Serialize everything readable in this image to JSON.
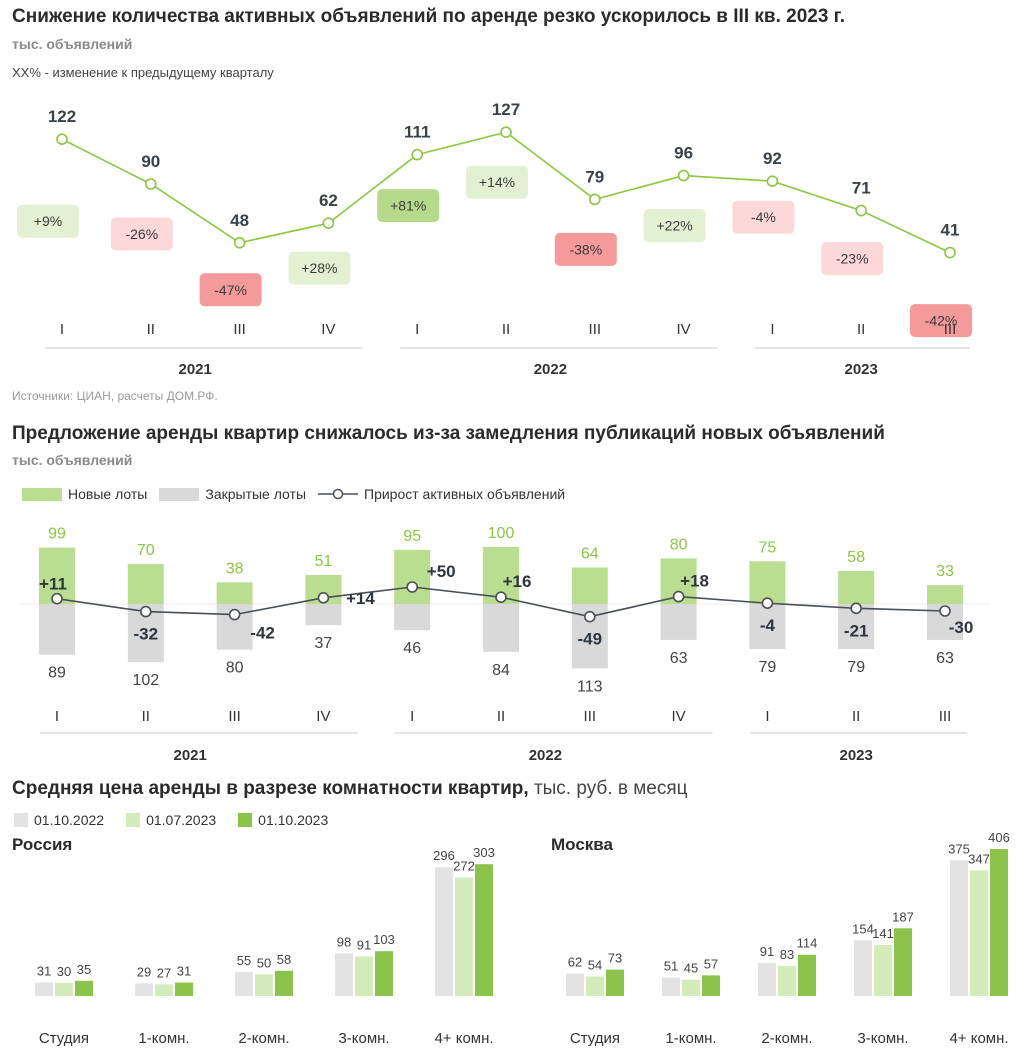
{
  "colors": {
    "line": "#8dc63f",
    "green_bar": "#b9de8f",
    "gray_bar": "#d9d9d9",
    "dark_line": "#4a5058",
    "pos_badge_strong": "#b5db8a",
    "pos_badge_light": "#e3f1d3",
    "neg_badge_strong": "#f59a9a",
    "neg_badge_light": "#fcd8d8",
    "price_old": "#e3e3e3",
    "price_mid": "#d4ebbc",
    "price_new": "#8cc34a"
  },
  "chart1": {
    "title": "Снижение количества активных объявлений по аренде резко ускорилось в III кв. 2023 г.",
    "subtitle": "тыс. объявлений",
    "note": "XX% - изменение к предыдущему кварталу",
    "source": "Источники: ЦИАН, расчеты ДОМ.РФ."
  },
  "chart2": {
    "title": "Предложение аренды квартир снижалось из-за замедления публикаций новых объявлений",
    "subtitle": "тыс. объявлений",
    "legend": {
      "new_lots": "Новые лоты",
      "closed_lots": "Закрытые лоты",
      "growth": "Прирост активных объявлений"
    }
  },
  "chart3": {
    "title": "Средняя цена аренды в разрезе комнатности квартир,",
    "unit": "тыс. руб. в месяц",
    "legend": [
      "01.10.2022",
      "01.07.2023",
      "01.10.2023"
    ],
    "regions": [
      "Россия",
      "Москва"
    ]
  },
  "chart_data": [
    {
      "type": "line",
      "title": "Снижение количества активных объявлений по аренде резко ускорилось в III кв. 2023 г.",
      "ylabel": "тыс. объявлений",
      "categories": [
        "I",
        "II",
        "III",
        "IV",
        "I",
        "II",
        "III",
        "IV",
        "I",
        "II",
        "III"
      ],
      "groups": [
        {
          "label": "2021",
          "count": 4
        },
        {
          "label": "2022",
          "count": 4
        },
        {
          "label": "2023",
          "count": 3
        }
      ],
      "values": [
        122,
        90,
        48,
        62,
        111,
        127,
        79,
        96,
        92,
        71,
        41
      ],
      "changes": [
        "+9%",
        "-26%",
        "-47%",
        "+28%",
        "+81%",
        "+14%",
        "-38%",
        "+22%",
        "-4%",
        "-23%",
        "-42%"
      ],
      "ylim": [
        30,
        135
      ]
    },
    {
      "type": "bar",
      "title": "Предложение аренды квартир снижалось из-за замедления публикаций новых объявлений",
      "ylabel": "тыс. объявлений",
      "categories": [
        "I",
        "II",
        "III",
        "IV",
        "I",
        "II",
        "III",
        "IV",
        "I",
        "II",
        "III"
      ],
      "groups": [
        {
          "label": "2021",
          "count": 4
        },
        {
          "label": "2022",
          "count": 4
        },
        {
          "label": "2023",
          "count": 3
        }
      ],
      "series": [
        {
          "name": "Новые лоты",
          "values": [
            99,
            70,
            38,
            51,
            95,
            100,
            64,
            80,
            75,
            58,
            33
          ]
        },
        {
          "name": "Закрытые лоты",
          "values": [
            89,
            102,
            80,
            37,
            46,
            84,
            113,
            63,
            79,
            79,
            63
          ]
        },
        {
          "name": "Прирост активных объявлений",
          "type": "line",
          "values": [
            11,
            -32,
            -42,
            14,
            50,
            16,
            -49,
            18,
            -4,
            -21,
            -30
          ]
        }
      ]
    },
    {
      "type": "bar",
      "title": "Средняя цена аренды в разрезе комнатности квартир, тыс. руб. в месяц",
      "subtitle": "Россия",
      "categories": [
        "Студия",
        "1-комн.",
        "2-комн.",
        "3-комн.",
        "4+ комн."
      ],
      "series": [
        {
          "name": "01.10.2022",
          "values": [
            31,
            29,
            55,
            98,
            296
          ]
        },
        {
          "name": "01.07.2023",
          "values": [
            30,
            27,
            50,
            91,
            272
          ]
        },
        {
          "name": "01.10.2023",
          "values": [
            35,
            31,
            58,
            103,
            303
          ]
        }
      ]
    },
    {
      "type": "bar",
      "title": "Средняя цена аренды в разрезе комнатности квартир, тыс. руб. в месяц",
      "subtitle": "Москва",
      "categories": [
        "Студия",
        "1-комн.",
        "2-комн.",
        "3-комн.",
        "4+ комн."
      ],
      "series": [
        {
          "name": "01.10.2022",
          "values": [
            62,
            51,
            91,
            154,
            375
          ]
        },
        {
          "name": "01.07.2023",
          "values": [
            54,
            45,
            83,
            141,
            347
          ]
        },
        {
          "name": "01.10.2023",
          "values": [
            73,
            57,
            114,
            187,
            406
          ]
        }
      ]
    }
  ]
}
